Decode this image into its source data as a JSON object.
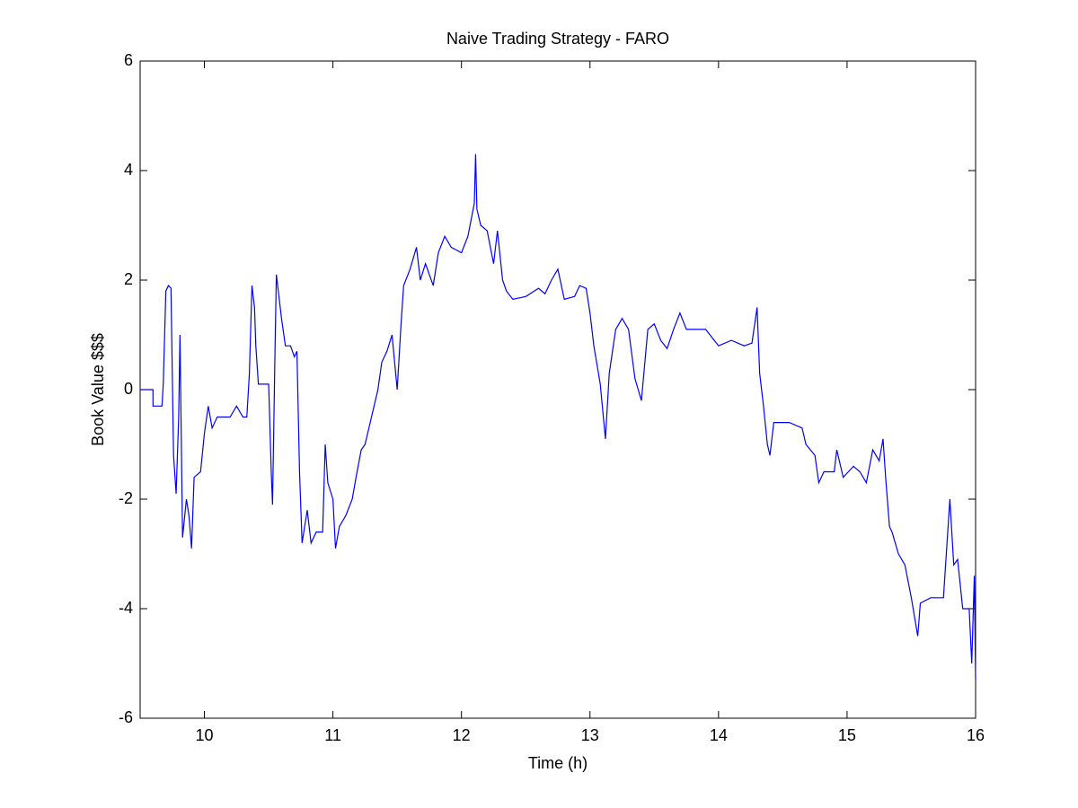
{
  "chart_data": {
    "type": "line",
    "title": "Naive Trading Strategy - FARO",
    "x_label": "Time (h)",
    "y_label": "Book Value $$$",
    "xlim": [
      9.5,
      16
    ],
    "xticks": [
      10,
      11,
      12,
      13,
      14,
      15,
      16
    ],
    "ylim": [
      -6,
      6
    ],
    "yticks": [
      -6,
      -4,
      -2,
      0,
      2,
      4,
      6
    ],
    "grid": false,
    "series": [
      {
        "color": "#0000ff",
        "x": [
          9.5,
          9.6,
          9.6,
          9.67,
          9.68,
          9.7,
          9.72,
          9.74,
          9.76,
          9.78,
          9.8,
          9.81,
          9.83,
          9.86,
          9.88,
          9.9,
          9.92,
          9.97,
          10.0,
          10.03,
          10.06,
          10.1,
          10.2,
          10.25,
          10.3,
          10.33,
          10.35,
          10.37,
          10.39,
          10.4,
          10.42,
          10.5,
          10.52,
          10.53,
          10.55,
          10.56,
          10.6,
          10.63,
          10.67,
          10.7,
          10.72,
          10.74,
          10.76,
          10.8,
          10.83,
          10.87,
          10.92,
          10.94,
          10.96,
          11.0,
          11.02,
          11.05,
          11.1,
          11.15,
          11.18,
          11.22,
          11.25,
          11.28,
          11.3,
          11.35,
          11.38,
          11.42,
          11.46,
          11.5,
          11.53,
          11.55,
          11.6,
          11.65,
          11.68,
          11.72,
          11.78,
          11.82,
          11.87,
          11.92,
          12.0,
          12.05,
          12.1,
          12.11,
          12.12,
          12.15,
          12.2,
          12.25,
          12.28,
          12.32,
          12.35,
          12.4,
          12.5,
          12.6,
          12.65,
          12.7,
          12.75,
          12.8,
          12.88,
          12.92,
          12.97,
          13.0,
          13.03,
          13.08,
          13.12,
          13.15,
          13.2,
          13.25,
          13.3,
          13.35,
          13.4,
          13.45,
          13.5,
          13.55,
          13.6,
          13.65,
          13.7,
          13.75,
          13.9,
          14.0,
          14.1,
          14.2,
          14.26,
          14.3,
          14.32,
          14.35,
          14.38,
          14.4,
          14.43,
          14.55,
          14.65,
          14.68,
          14.75,
          14.78,
          14.82,
          14.9,
          14.92,
          14.97,
          15.05,
          15.1,
          15.15,
          15.2,
          15.25,
          15.28,
          15.3,
          15.33,
          15.35,
          15.4,
          15.45,
          15.5,
          15.55,
          15.57,
          15.65,
          15.75,
          15.8,
          15.83,
          15.86,
          15.9,
          15.95,
          15.97,
          15.99,
          16.0
        ],
        "values": [
          0,
          0,
          -0.3,
          -0.3,
          0.1,
          1.8,
          1.9,
          1.85,
          -1.2,
          -1.9,
          -0.5,
          1.0,
          -2.7,
          -2.0,
          -2.3,
          -2.9,
          -1.6,
          -1.5,
          -0.8,
          -0.3,
          -0.7,
          -0.5,
          -0.5,
          -0.3,
          -0.5,
          -0.5,
          0.3,
          1.9,
          1.5,
          0.8,
          0.1,
          0.1,
          -1.5,
          -2.1,
          0.8,
          2.1,
          1.3,
          0.8,
          0.8,
          0.6,
          0.7,
          -1.5,
          -2.8,
          -2.2,
          -2.8,
          -2.6,
          -2.6,
          -1.0,
          -1.7,
          -2.0,
          -2.9,
          -2.5,
          -2.3,
          -2.0,
          -1.6,
          -1.1,
          -1.0,
          -0.7,
          -0.5,
          0.0,
          0.5,
          0.7,
          1.0,
          0.0,
          1.2,
          1.9,
          2.2,
          2.6,
          2.0,
          2.3,
          1.9,
          2.5,
          2.8,
          2.6,
          2.5,
          2.8,
          3.4,
          4.3,
          3.3,
          3.0,
          2.9,
          2.3,
          2.9,
          2.0,
          1.8,
          1.65,
          1.7,
          1.85,
          1.75,
          2.0,
          2.2,
          1.65,
          1.7,
          1.9,
          1.85,
          1.4,
          0.8,
          0.1,
          -0.9,
          0.3,
          1.1,
          1.3,
          1.1,
          0.2,
          -0.2,
          1.1,
          1.2,
          0.9,
          0.75,
          1.1,
          1.4,
          1.1,
          1.1,
          0.8,
          0.9,
          0.8,
          0.85,
          1.5,
          0.3,
          -0.3,
          -1.0,
          -1.2,
          -0.6,
          -0.6,
          -0.7,
          -1.0,
          -1.2,
          -1.7,
          -1.5,
          -1.5,
          -1.1,
          -1.6,
          -1.4,
          -1.5,
          -1.7,
          -1.1,
          -1.3,
          -0.9,
          -1.6,
          -2.5,
          -2.6,
          -3.0,
          -3.2,
          -3.8,
          -4.5,
          -3.9,
          -3.8,
          -3.8,
          -2.0,
          -3.2,
          -3.1,
          -4.0,
          -4.0,
          -5.0,
          -3.4,
          -5.3
        ]
      }
    ]
  }
}
